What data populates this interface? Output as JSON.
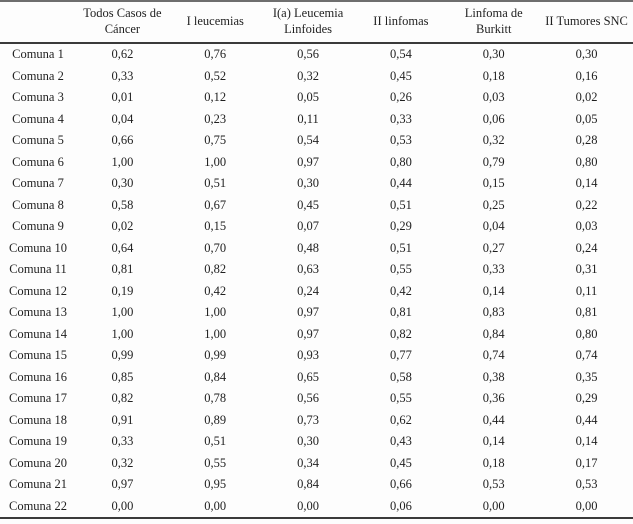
{
  "chart_data": {
    "type": "table",
    "columns": [
      "Todos Casos de Cáncer",
      "I leucemias",
      "I(a) Leucemia Linfoides",
      "II linfomas",
      "Linfoma de Burkitt",
      "II Tumores SNC"
    ],
    "corner_label": "",
    "rows": [
      {
        "label": "Comuna 1",
        "values": [
          "0,62",
          "0,76",
          "0,56",
          "0,54",
          "0,30",
          "0,30"
        ]
      },
      {
        "label": "Comuna 2",
        "values": [
          "0,33",
          "0,52",
          "0,32",
          "0,45",
          "0,18",
          "0,16"
        ]
      },
      {
        "label": "Comuna 3",
        "values": [
          "0,01",
          "0,12",
          "0,05",
          "0,26",
          "0,03",
          "0,02"
        ]
      },
      {
        "label": "Comuna 4",
        "values": [
          "0,04",
          "0,23",
          "0,11",
          "0,33",
          "0,06",
          "0,05"
        ]
      },
      {
        "label": "Comuna 5",
        "values": [
          "0,66",
          "0,75",
          "0,54",
          "0,53",
          "0,32",
          "0,28"
        ]
      },
      {
        "label": "Comuna 6",
        "values": [
          "1,00",
          "1,00",
          "0,97",
          "0,80",
          "0,79",
          "0,80"
        ]
      },
      {
        "label": "Comuna 7",
        "values": [
          "0,30",
          "0,51",
          "0,30",
          "0,44",
          "0,15",
          "0,14"
        ]
      },
      {
        "label": "Comuna 8",
        "values": [
          "0,58",
          "0,67",
          "0,45",
          "0,51",
          "0,25",
          "0,22"
        ]
      },
      {
        "label": "Comuna 9",
        "values": [
          "0,02",
          "0,15",
          "0,07",
          "0,29",
          "0,04",
          "0,03"
        ]
      },
      {
        "label": "Comuna 10",
        "values": [
          "0,64",
          "0,70",
          "0,48",
          "0,51",
          "0,27",
          "0,24"
        ]
      },
      {
        "label": "Comuna 11",
        "values": [
          "0,81",
          "0,82",
          "0,63",
          "0,55",
          "0,33",
          "0,31"
        ]
      },
      {
        "label": "Comuna 12",
        "values": [
          "0,19",
          "0,42",
          "0,24",
          "0,42",
          "0,14",
          "0,11"
        ]
      },
      {
        "label": "Comuna 13",
        "values": [
          "1,00",
          "1,00",
          "0,97",
          "0,81",
          "0,83",
          "0,81"
        ]
      },
      {
        "label": "Comuna 14",
        "values": [
          "1,00",
          "1,00",
          "0,97",
          "0,82",
          "0,84",
          "0,80"
        ]
      },
      {
        "label": "Comuna 15",
        "values": [
          "0,99",
          "0,99",
          "0,93",
          "0,77",
          "0,74",
          "0,74"
        ]
      },
      {
        "label": "Comuna 16",
        "values": [
          "0,85",
          "0,84",
          "0,65",
          "0,58",
          "0,38",
          "0,35"
        ]
      },
      {
        "label": "Comuna 17",
        "values": [
          "0,82",
          "0,78",
          "0,56",
          "0,55",
          "0,36",
          "0,29"
        ]
      },
      {
        "label": "Comuna 18",
        "values": [
          "0,91",
          "0,89",
          "0,73",
          "0,62",
          "0,44",
          "0,44"
        ]
      },
      {
        "label": "Comuna 19",
        "values": [
          "0,33",
          "0,51",
          "0,30",
          "0,43",
          "0,14",
          "0,14"
        ]
      },
      {
        "label": "Comuna 20",
        "values": [
          "0,32",
          "0,55",
          "0,34",
          "0,45",
          "0,18",
          "0,17"
        ]
      },
      {
        "label": "Comuna 21",
        "values": [
          "0,97",
          "0,95",
          "0,84",
          "0,66",
          "0,53",
          "0,53"
        ]
      },
      {
        "label": "Comuna 22",
        "values": [
          "0,00",
          "0,00",
          "0,00",
          "0,06",
          "0,00",
          "0,00"
        ]
      }
    ],
    "colors": {
      "top_rule": "#6e6e6e",
      "header_rule": "#3a3a3a",
      "bottom_rule": "#3a3a3a",
      "text": "#1f1f1f",
      "background": "#fdfdfd"
    },
    "layout": {
      "gridlines": "none",
      "decimal_separator": ","
    }
  }
}
